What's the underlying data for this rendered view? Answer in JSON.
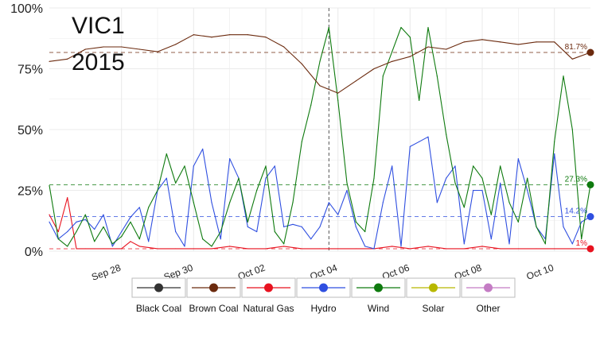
{
  "colors": {
    "Black Coal": "#333333",
    "Brown Coal": "#6b2a0e",
    "Natural Gas": "#e8121f",
    "Hydro": "#2f4fe0",
    "Wind": "#0e7a0e",
    "Solar": "#b8b800",
    "Other": "#c47cc4",
    "grid": "#ebebeb",
    "panel": "#ffffff"
  },
  "chart_data": {
    "type": "line",
    "title_line1": "VIC1",
    "title_line2": "2015",
    "xlabel": "",
    "ylabel": "",
    "x_start": "2015-09-26 00:00",
    "x_end": "2015-10-11 00:00",
    "x_ticks": [
      {
        "label": "Sep 28",
        "date": "2015-09-28"
      },
      {
        "label": "Sep 30",
        "date": "2015-09-30"
      },
      {
        "label": "Oct 02",
        "date": "2015-10-02"
      },
      {
        "label": "Oct 04",
        "date": "2015-10-04"
      },
      {
        "label": "Oct 06",
        "date": "2015-10-06"
      },
      {
        "label": "Oct 08",
        "date": "2015-10-08"
      },
      {
        "label": "Oct 10",
        "date": "2015-10-10"
      }
    ],
    "y_ticks": [
      "0%",
      "25%",
      "50%",
      "75%",
      "100%"
    ],
    "y_tick_values": [
      0,
      25,
      50,
      75,
      100
    ],
    "ylim": [
      0,
      100
    ],
    "grid": true,
    "marker_date": "2015-10-03 18:00",
    "legend_position": "bottom",
    "series": [
      {
        "name": "Brown Coal",
        "ref_value": 81.7,
        "ref_label": "81.7%",
        "points": [
          [
            "2015-09-26 00:00",
            78
          ],
          [
            "2015-09-26 12:00",
            79
          ],
          [
            "2015-09-27 00:00",
            83
          ],
          [
            "2015-09-27 12:00",
            84
          ],
          [
            "2015-09-28 00:00",
            84
          ],
          [
            "2015-09-28 12:00",
            83
          ],
          [
            "2015-09-29 00:00",
            82
          ],
          [
            "2015-09-29 12:00",
            85
          ],
          [
            "2015-09-30 00:00",
            89
          ],
          [
            "2015-09-30 12:00",
            88
          ],
          [
            "2015-10-01 00:00",
            89
          ],
          [
            "2015-10-01 12:00",
            89
          ],
          [
            "2015-10-02 00:00",
            88
          ],
          [
            "2015-10-02 12:00",
            84
          ],
          [
            "2015-10-03 00:00",
            77
          ],
          [
            "2015-10-03 12:00",
            68
          ],
          [
            "2015-10-04 00:00",
            65
          ],
          [
            "2015-10-04 12:00",
            70
          ],
          [
            "2015-10-05 00:00",
            75
          ],
          [
            "2015-10-05 12:00",
            78
          ],
          [
            "2015-10-06 00:00",
            80
          ],
          [
            "2015-10-06 12:00",
            84
          ],
          [
            "2015-10-07 00:00",
            83
          ],
          [
            "2015-10-07 12:00",
            86
          ],
          [
            "2015-10-08 00:00",
            87
          ],
          [
            "2015-10-08 12:00",
            86
          ],
          [
            "2015-10-09 00:00",
            85
          ],
          [
            "2015-10-09 12:00",
            86
          ],
          [
            "2015-10-10 00:00",
            86
          ],
          [
            "2015-10-10 12:00",
            79
          ],
          [
            "2015-10-11 00:00",
            81.7
          ]
        ]
      },
      {
        "name": "Wind",
        "ref_value": 27.3,
        "ref_label": "27.3%",
        "points": [
          [
            "2015-09-26 00:00",
            27
          ],
          [
            "2015-09-26 06:00",
            5
          ],
          [
            "2015-09-26 12:00",
            2
          ],
          [
            "2015-09-26 18:00",
            8
          ],
          [
            "2015-09-27 00:00",
            15
          ],
          [
            "2015-09-27 06:00",
            4
          ],
          [
            "2015-09-27 12:00",
            10
          ],
          [
            "2015-09-27 18:00",
            3
          ],
          [
            "2015-09-28 00:00",
            6
          ],
          [
            "2015-09-28 06:00",
            12
          ],
          [
            "2015-09-28 12:00",
            5
          ],
          [
            "2015-09-28 18:00",
            18
          ],
          [
            "2015-09-29 00:00",
            25
          ],
          [
            "2015-09-29 06:00",
            40
          ],
          [
            "2015-09-29 12:00",
            28
          ],
          [
            "2015-09-29 18:00",
            35
          ],
          [
            "2015-09-30 00:00",
            20
          ],
          [
            "2015-09-30 06:00",
            5
          ],
          [
            "2015-09-30 12:00",
            2
          ],
          [
            "2015-09-30 18:00",
            8
          ],
          [
            "2015-10-01 00:00",
            20
          ],
          [
            "2015-10-01 06:00",
            30
          ],
          [
            "2015-10-01 12:00",
            12
          ],
          [
            "2015-10-01 18:00",
            25
          ],
          [
            "2015-10-02 00:00",
            35
          ],
          [
            "2015-10-02 06:00",
            8
          ],
          [
            "2015-10-02 12:00",
            3
          ],
          [
            "2015-10-02 18:00",
            20
          ],
          [
            "2015-10-03 00:00",
            45
          ],
          [
            "2015-10-03 06:00",
            60
          ],
          [
            "2015-10-03 12:00",
            78
          ],
          [
            "2015-10-03 18:00",
            92
          ],
          [
            "2015-10-04 00:00",
            62
          ],
          [
            "2015-10-04 06:00",
            28
          ],
          [
            "2015-10-04 12:00",
            12
          ],
          [
            "2015-10-04 18:00",
            8
          ],
          [
            "2015-10-05 00:00",
            30
          ],
          [
            "2015-10-05 06:00",
            72
          ],
          [
            "2015-10-05 12:00",
            82
          ],
          [
            "2015-10-05 18:00",
            92
          ],
          [
            "2015-10-06 00:00",
            88
          ],
          [
            "2015-10-06 06:00",
            62
          ],
          [
            "2015-10-06 12:00",
            92
          ],
          [
            "2015-10-06 18:00",
            72
          ],
          [
            "2015-10-07 00:00",
            48
          ],
          [
            "2015-10-07 06:00",
            28
          ],
          [
            "2015-10-07 12:00",
            18
          ],
          [
            "2015-10-07 18:00",
            35
          ],
          [
            "2015-10-08 00:00",
            30
          ],
          [
            "2015-10-08 06:00",
            15
          ],
          [
            "2015-10-08 12:00",
            35
          ],
          [
            "2015-10-08 18:00",
            20
          ],
          [
            "2015-10-09 00:00",
            12
          ],
          [
            "2015-10-09 06:00",
            30
          ],
          [
            "2015-10-09 12:00",
            10
          ],
          [
            "2015-10-09 18:00",
            3
          ],
          [
            "2015-10-10 00:00",
            45
          ],
          [
            "2015-10-10 06:00",
            72
          ],
          [
            "2015-10-10 12:00",
            50
          ],
          [
            "2015-10-10 18:00",
            5
          ],
          [
            "2015-10-11 00:00",
            27.3
          ]
        ]
      },
      {
        "name": "Hydro",
        "ref_value": 14.2,
        "ref_label": "14.2%",
        "points": [
          [
            "2015-09-26 00:00",
            12
          ],
          [
            "2015-09-26 06:00",
            5
          ],
          [
            "2015-09-26 12:00",
            8
          ],
          [
            "2015-09-26 18:00",
            12
          ],
          [
            "2015-09-27 00:00",
            13
          ],
          [
            "2015-09-27 06:00",
            9
          ],
          [
            "2015-09-27 12:00",
            15
          ],
          [
            "2015-09-27 18:00",
            2
          ],
          [
            "2015-09-28 00:00",
            8
          ],
          [
            "2015-09-28 06:00",
            14
          ],
          [
            "2015-09-28 12:00",
            18
          ],
          [
            "2015-09-28 18:00",
            4
          ],
          [
            "2015-09-29 00:00",
            25
          ],
          [
            "2015-09-29 06:00",
            30
          ],
          [
            "2015-09-29 12:00",
            8
          ],
          [
            "2015-09-29 18:00",
            2
          ],
          [
            "2015-09-30 00:00",
            35
          ],
          [
            "2015-09-30 06:00",
            42
          ],
          [
            "2015-09-30 12:00",
            20
          ],
          [
            "2015-09-30 18:00",
            5
          ],
          [
            "2015-10-01 00:00",
            38
          ],
          [
            "2015-10-01 06:00",
            30
          ],
          [
            "2015-10-01 12:00",
            10
          ],
          [
            "2015-10-01 18:00",
            8
          ],
          [
            "2015-10-02 00:00",
            30
          ],
          [
            "2015-10-02 06:00",
            35
          ],
          [
            "2015-10-02 12:00",
            10
          ],
          [
            "2015-10-02 18:00",
            11
          ],
          [
            "2015-10-03 00:00",
            10
          ],
          [
            "2015-10-03 06:00",
            5
          ],
          [
            "2015-10-03 12:00",
            10
          ],
          [
            "2015-10-03 18:00",
            20
          ],
          [
            "2015-10-04 00:00",
            15
          ],
          [
            "2015-10-04 06:00",
            25
          ],
          [
            "2015-10-04 12:00",
            10
          ],
          [
            "2015-10-04 18:00",
            2
          ],
          [
            "2015-10-05 00:00",
            1
          ],
          [
            "2015-10-05 06:00",
            20
          ],
          [
            "2015-10-05 12:00",
            35
          ],
          [
            "2015-10-05 18:00",
            2
          ],
          [
            "2015-10-06 00:00",
            43
          ],
          [
            "2015-10-06 06:00",
            45
          ],
          [
            "2015-10-06 12:00",
            47
          ],
          [
            "2015-10-06 18:00",
            20
          ],
          [
            "2015-10-07 00:00",
            30
          ],
          [
            "2015-10-07 06:00",
            35
          ],
          [
            "2015-10-07 12:00",
            3
          ],
          [
            "2015-10-07 18:00",
            25
          ],
          [
            "2015-10-08 00:00",
            25
          ],
          [
            "2015-10-08 06:00",
            5
          ],
          [
            "2015-10-08 12:00",
            28
          ],
          [
            "2015-10-08 18:00",
            3
          ],
          [
            "2015-10-09 00:00",
            38
          ],
          [
            "2015-10-09 06:00",
            25
          ],
          [
            "2015-10-09 12:00",
            10
          ],
          [
            "2015-10-09 18:00",
            5
          ],
          [
            "2015-10-10 00:00",
            40
          ],
          [
            "2015-10-10 06:00",
            10
          ],
          [
            "2015-10-10 12:00",
            3
          ],
          [
            "2015-10-10 18:00",
            12
          ],
          [
            "2015-10-11 00:00",
            14.2
          ]
        ]
      },
      {
        "name": "Natural Gas",
        "ref_value": 1.0,
        "ref_label": "1%",
        "points": [
          [
            "2015-09-26 00:00",
            15
          ],
          [
            "2015-09-26 06:00",
            8
          ],
          [
            "2015-09-26 12:00",
            22
          ],
          [
            "2015-09-26 18:00",
            1
          ],
          [
            "2015-09-27 00:00",
            1
          ],
          [
            "2015-09-27 12:00",
            1
          ],
          [
            "2015-09-28 00:00",
            1
          ],
          [
            "2015-09-28 06:00",
            4
          ],
          [
            "2015-09-28 12:00",
            2
          ],
          [
            "2015-09-29 00:00",
            1
          ],
          [
            "2015-09-29 12:00",
            1
          ],
          [
            "2015-09-30 00:00",
            1
          ],
          [
            "2015-09-30 12:00",
            1
          ],
          [
            "2015-10-01 00:00",
            2
          ],
          [
            "2015-10-01 12:00",
            1
          ],
          [
            "2015-10-02 00:00",
            1
          ],
          [
            "2015-10-02 12:00",
            2
          ],
          [
            "2015-10-03 00:00",
            1
          ],
          [
            "2015-10-03 12:00",
            1
          ],
          [
            "2015-10-04 00:00",
            1
          ],
          [
            "2015-10-04 12:00",
            1
          ],
          [
            "2015-10-05 00:00",
            1
          ],
          [
            "2015-10-05 12:00",
            2
          ],
          [
            "2015-10-06 00:00",
            1
          ],
          [
            "2015-10-06 12:00",
            2
          ],
          [
            "2015-10-07 00:00",
            1
          ],
          [
            "2015-10-07 12:00",
            1
          ],
          [
            "2015-10-08 00:00",
            2
          ],
          [
            "2015-10-08 12:00",
            1
          ],
          [
            "2015-10-09 00:00",
            1
          ],
          [
            "2015-10-09 12:00",
            1
          ],
          [
            "2015-10-10 00:00",
            1
          ],
          [
            "2015-10-10 12:00",
            1
          ],
          [
            "2015-10-11 00:00",
            1
          ]
        ]
      }
    ],
    "legend": [
      {
        "name": "Black Coal"
      },
      {
        "name": "Brown Coal"
      },
      {
        "name": "Natural Gas"
      },
      {
        "name": "Hydro"
      },
      {
        "name": "Wind"
      },
      {
        "name": "Solar"
      },
      {
        "name": "Other"
      }
    ]
  }
}
